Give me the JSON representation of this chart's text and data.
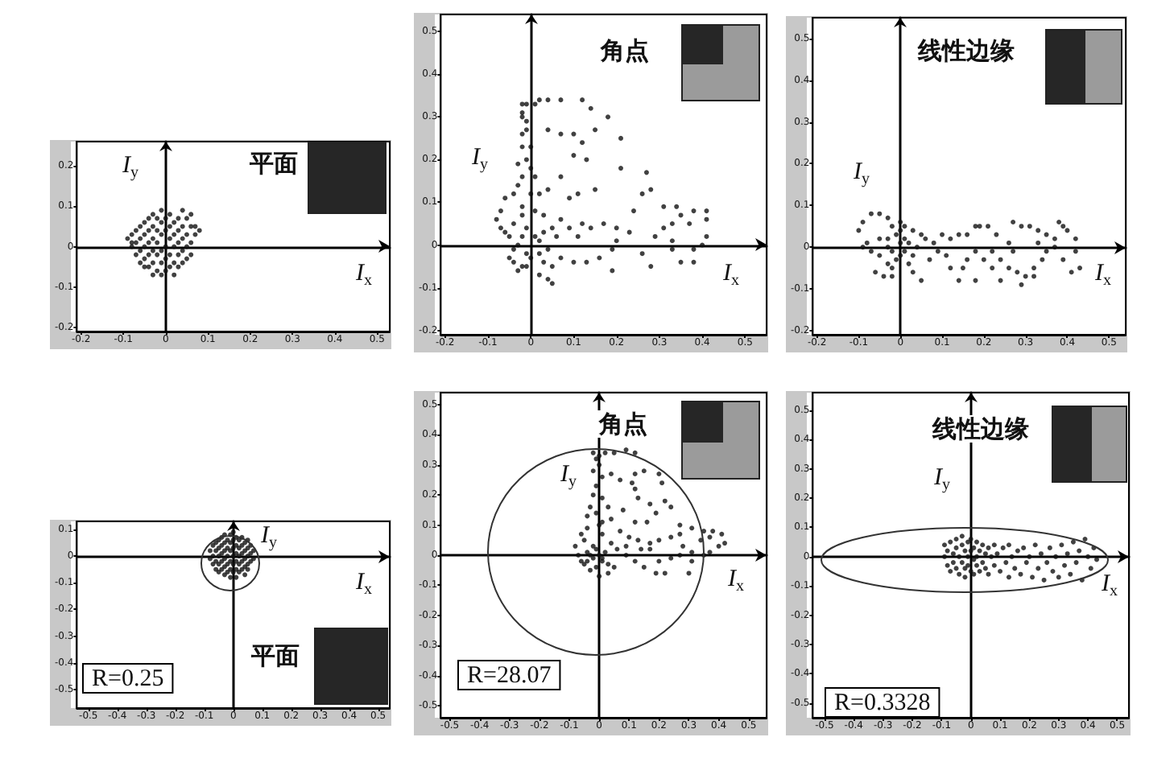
{
  "chart_data": [
    {
      "type": "scatter",
      "title": "平面",
      "xlabel": "I$_{x}$",
      "ylabel": "I$_{y}$",
      "xlim": [
        -0.21,
        0.53
      ],
      "ylim": [
        -0.21,
        0.26
      ],
      "xticks": [
        -0.2,
        -0.1,
        0,
        0.1,
        0.2,
        0.3,
        0.4,
        0.5
      ],
      "yticks": [
        -0.2,
        -0.1,
        0,
        0.1,
        0.2
      ],
      "marker": "circle",
      "color": "#111111",
      "x": [
        -0.09,
        -0.08,
        -0.08,
        -0.08,
        -0.07,
        -0.07,
        -0.07,
        -0.06,
        -0.06,
        -0.06,
        -0.06,
        -0.05,
        -0.05,
        -0.05,
        -0.05,
        -0.05,
        -0.04,
        -0.04,
        -0.04,
        -0.04,
        -0.04,
        -0.03,
        -0.03,
        -0.03,
        -0.03,
        -0.03,
        -0.03,
        -0.02,
        -0.02,
        -0.02,
        -0.02,
        -0.02,
        -0.01,
        -0.01,
        -0.01,
        -0.01,
        -0.01,
        -0.01,
        0,
        0,
        0,
        0,
        0,
        0.01,
        0.01,
        0.01,
        0.01,
        0.01,
        0.02,
        0.02,
        0.02,
        0.02,
        0.02,
        0.03,
        0.03,
        0.03,
        0.03,
        0.03,
        0.04,
        0.04,
        0.04,
        0.04,
        0.04,
        0.05,
        0.05,
        0.05,
        0.05,
        0.06,
        0.06,
        0.06,
        0.06,
        0.07,
        0.07,
        0.08
      ],
      "values": [
        0.02,
        0.01,
        0,
        0.03,
        -0.02,
        0.04,
        0.01,
        -0.04,
        0.05,
        0.02,
        -0.01,
        -0.05,
        0.06,
        0.03,
        0,
        -0.03,
        0.07,
        0.04,
        0.01,
        -0.02,
        -0.05,
        0.08,
        0.05,
        0.02,
        -0.01,
        -0.04,
        -0.07,
        0.07,
        0.04,
        0.01,
        -0.02,
        -0.06,
        0.09,
        0.06,
        0.03,
        -0.01,
        -0.04,
        -0.07,
        0.07,
        0.04,
        0,
        -0.03,
        -0.06,
        0.08,
        0.05,
        0.02,
        -0.02,
        -0.05,
        0.06,
        0.03,
        0,
        -0.04,
        -0.07,
        0.07,
        0.04,
        0.01,
        -0.02,
        -0.05,
        0.09,
        0.05,
        0.02,
        -0.01,
        -0.04,
        0.07,
        0.03,
        0,
        -0.03,
        0.08,
        0.05,
        0.01,
        -0.02,
        0.05,
        0.03,
        0.04
      ]
    },
    {
      "type": "scatter",
      "title": "角点",
      "xlabel": "I$_{x}$",
      "ylabel": "I$_{y}$",
      "xlim": [
        -0.21,
        0.55
      ],
      "ylim": [
        -0.21,
        0.54
      ],
      "xticks": [
        -0.2,
        -0.1,
        0,
        0.1,
        0.2,
        0.3,
        0.4,
        0.5
      ],
      "yticks": [
        -0.2,
        -0.1,
        0,
        0.1,
        0.2,
        0.3,
        0.4,
        0.5
      ],
      "marker": "circle",
      "color": "#111111",
      "x": [
        -0.02,
        -0.01,
        0.01,
        0.02,
        0.04,
        0.07,
        0.12,
        0.14,
        0.18,
        -0.02,
        -0.02,
        -0.01,
        0.04,
        0.07,
        0.1,
        0.15,
        0.21,
        0.12,
        -0.02,
        0,
        0.1,
        0.13,
        0.07,
        0.11,
        0.15,
        0.21,
        0.27,
        0.26,
        0.28,
        0.24,
        0.31,
        0.34,
        0.35,
        0.38,
        0.41,
        0.41,
        0.37,
        0.33,
        0.31,
        0.29,
        0.33,
        0.41,
        0.4,
        0.38,
        0.33,
        0.35,
        0.38,
        0.28,
        0.26,
        0.23,
        0.2,
        0.17,
        0.14,
        0.12,
        0.09,
        0.11,
        0.19,
        0.2,
        0.19,
        0.16,
        0.1,
        0.13,
        0.05,
        0.03,
        0.07,
        0.09,
        0.04,
        0.02,
        0.01,
        -0.02,
        -0.03,
        -0.04,
        -0.06,
        -0.07,
        -0.08,
        -0.07,
        -0.05,
        -0.04,
        -0.05,
        -0.04,
        -0.02,
        -0.01,
        0.02,
        0.04,
        0.05,
        0.05,
        0.07,
        0.04,
        0.01,
        -0.01,
        -0.02,
        -0.02,
        0,
        0.01,
        0.02,
        -0.01,
        -0.03,
        -0.06,
        -0.01,
        0,
        -0.03,
        -0.02,
        -0.01,
        -0.03,
        0.03,
        -0.02,
        0.02,
        0.03,
        -0.04,
        0,
        0.06
      ],
      "values": [
        0.33,
        0.33,
        0.33,
        0.34,
        0.34,
        0.34,
        0.34,
        0.32,
        0.3,
        0.31,
        0.3,
        0.29,
        0.27,
        0.26,
        0.26,
        0.27,
        0.25,
        0.24,
        0.23,
        0.23,
        0.21,
        0.2,
        0.16,
        0.12,
        0.13,
        0.18,
        0.17,
        0.12,
        0.13,
        0.08,
        0.09,
        0.09,
        0.07,
        0.08,
        0.08,
        0.06,
        0.05,
        0.05,
        0.04,
        0.02,
        0.01,
        0.02,
        0,
        -0.01,
        -0.01,
        -0.04,
        -0.04,
        -0.05,
        -0.02,
        0.03,
        0.04,
        0.05,
        0.04,
        0.05,
        0.04,
        0.02,
        -0.01,
        0.01,
        -0.06,
        -0.03,
        -0.04,
        -0.04,
        0.04,
        0.07,
        0.06,
        0.11,
        0.13,
        0.12,
        0.16,
        0.16,
        0.14,
        0.12,
        0.11,
        0.08,
        0.06,
        0.04,
        0.02,
        -0.01,
        -0.03,
        -0.04,
        -0.05,
        -0.05,
        -0.07,
        -0.08,
        -0.09,
        -0.05,
        -0.03,
        -0.01,
        0.02,
        0.04,
        0.07,
        0.09,
        0.12,
        0.08,
        -0.02,
        -0.02,
        0,
        0.03,
        0.2,
        0.18,
        0.19,
        0.26,
        0.27,
        -0.06,
        -0.04,
        0.02,
        0.01,
        0.03,
        0.05,
        -0.03,
        0.02
      ]
    },
    {
      "type": "scatter",
      "title": "线性边缘",
      "xlabel": "I$_{x}$",
      "ylabel": "I$_{y}$",
      "xlim": [
        -0.21,
        0.54
      ],
      "ylim": [
        -0.21,
        0.55
      ],
      "xticks": [
        -0.2,
        -0.1,
        0,
        0.1,
        0.2,
        0.3,
        0.4,
        0.5
      ],
      "yticks": [
        -0.2,
        -0.1,
        0,
        0.1,
        0.2,
        0.3,
        0.4,
        0.5
      ],
      "marker": "circle",
      "color": "#111111",
      "x": [
        -0.1,
        -0.09,
        -0.07,
        -0.05,
        -0.03,
        -0.02,
        0,
        0.01,
        0.03,
        0.05,
        0.06,
        0.08,
        0.1,
        0.12,
        0.14,
        0.16,
        0.18,
        0.19,
        0.21,
        0.23,
        0.26,
        0.27,
        0.29,
        0.31,
        0.33,
        0.35,
        0.37,
        0.38,
        0.39,
        0.4,
        0.42,
        0.42,
        0.43,
        0.41,
        0.39,
        0.37,
        0.35,
        0.34,
        0.32,
        0.3,
        0.28,
        0.26,
        0.24,
        0.22,
        0.2,
        0.18,
        0.16,
        0.15,
        0.14,
        0.12,
        0.11,
        0.09,
        0.07,
        0.05,
        0.03,
        0.01,
        0,
        -0.02,
        -0.03,
        -0.05,
        -0.07,
        -0.08,
        -0.09,
        -0.06,
        -0.04,
        -0.02,
        -0.01,
        0,
        0.02,
        -0.03,
        -0.05,
        0.18,
        0.29,
        0.32,
        0.24,
        0.33,
        0.22,
        0.27,
        -0.01,
        0.02,
        -0.03,
        0.04,
        0.01,
        -0.02,
        0.03,
        0
      ],
      "values": [
        0.04,
        0.06,
        0.08,
        0.08,
        0.07,
        0.05,
        0.06,
        0.05,
        0.04,
        0.03,
        0.02,
        0.01,
        0.03,
        0.02,
        0.03,
        0.03,
        0.05,
        0.05,
        0.05,
        0.03,
        0.01,
        0.06,
        0.05,
        0.05,
        0.04,
        0.03,
        0.02,
        0.06,
        0.05,
        0.04,
        0.02,
        -0.01,
        -0.05,
        -0.06,
        -0.03,
        0,
        -0.01,
        -0.03,
        -0.05,
        -0.07,
        -0.06,
        -0.05,
        -0.03,
        -0.05,
        -0.03,
        -0.01,
        -0.03,
        -0.05,
        -0.08,
        -0.05,
        -0.02,
        -0.01,
        -0.03,
        -0.08,
        -0.02,
        -0.01,
        -0.02,
        -0.05,
        -0.04,
        -0.02,
        -0.01,
        0.01,
        0,
        -0.06,
        -0.07,
        -0.07,
        0.03,
        0.01,
        0.01,
        0.02,
        0.02,
        -0.08,
        -0.09,
        -0.07,
        -0.08,
        0.01,
        -0.01,
        -0.01,
        -0.03,
        -0.04,
        0,
        0,
        0.02,
        -0.01,
        -0.06,
        0.04
      ]
    },
    {
      "type": "scatter",
      "title": "平面",
      "xlabel": "I$_{x}$",
      "ylabel": "I$_{y}$",
      "xlim": [
        -0.54,
        0.54
      ],
      "ylim": [
        -0.57,
        0.13
      ],
      "xticks": [
        -0.5,
        -0.4,
        -0.3,
        -0.2,
        -0.1,
        0,
        0.1,
        0.2,
        0.3,
        0.4,
        0.5
      ],
      "yticks": [
        -0.5,
        -0.4,
        -0.3,
        -0.2,
        -0.1,
        0,
        0.1
      ],
      "marker": "circle",
      "color": "#111111",
      "annotations": [
        "R=0.25"
      ],
      "x": [
        -0.08,
        -0.08,
        -0.07,
        -0.07,
        -0.07,
        -0.06,
        -0.06,
        -0.06,
        -0.06,
        -0.05,
        -0.05,
        -0.05,
        -0.05,
        -0.05,
        -0.04,
        -0.04,
        -0.04,
        -0.04,
        -0.04,
        -0.03,
        -0.03,
        -0.03,
        -0.03,
        -0.03,
        -0.03,
        -0.02,
        -0.02,
        -0.02,
        -0.02,
        -0.02,
        -0.01,
        -0.01,
        -0.01,
        -0.01,
        -0.01,
        -0.01,
        0,
        0,
        0,
        0,
        0,
        0,
        0.01,
        0.01,
        0.01,
        0.01,
        0.01,
        0.01,
        0.02,
        0.02,
        0.02,
        0.02,
        0.02,
        0.03,
        0.03,
        0.03,
        0.03,
        0.03,
        0.04,
        0.04,
        0.04,
        0.04,
        0.04,
        0.05,
        0.05,
        0.05,
        0.05,
        0.05,
        0.06,
        0.06,
        0.06,
        0.07,
        0.07
      ],
      "values": [
        0.02,
        -0.01,
        0.04,
        0,
        -0.03,
        0.05,
        0.02,
        -0.02,
        -0.05,
        0.06,
        0.03,
        0,
        -0.03,
        -0.06,
        0.07,
        0.04,
        0.01,
        -0.02,
        -0.05,
        0.08,
        0.05,
        0.02,
        -0.01,
        -0.04,
        -0.07,
        0.06,
        0.03,
        0,
        -0.03,
        -0.06,
        0.08,
        0.05,
        0.02,
        -0.02,
        -0.05,
        -0.08,
        0.09,
        0.06,
        0.03,
        0,
        -0.03,
        -0.06,
        0.07,
        0.04,
        0.01,
        -0.02,
        -0.05,
        -0.08,
        0.06,
        0.03,
        0,
        -0.03,
        -0.06,
        0.07,
        0.04,
        0.01,
        -0.02,
        -0.05,
        0.05,
        0.02,
        -0.01,
        -0.04,
        -0.07,
        0.06,
        0.03,
        0,
        -0.03,
        -0.05,
        0.04,
        0.01,
        -0.02,
        0.02,
        -0.01
      ]
    },
    {
      "type": "scatter",
      "title": "角点",
      "xlabel": "I$_{x}$",
      "ylabel": "I$_{y}$",
      "xlim": [
        -0.53,
        0.56
      ],
      "ylim": [
        -0.54,
        0.54
      ],
      "xticks": [
        -0.5,
        -0.4,
        -0.3,
        -0.2,
        -0.1,
        0,
        0.1,
        0.2,
        0.3,
        0.4,
        0.5
      ],
      "yticks": [
        -0.5,
        -0.4,
        -0.3,
        -0.2,
        -0.1,
        0,
        0.1,
        0.2,
        0.3,
        0.4,
        0.5
      ],
      "marker": "circle",
      "color": "#111111",
      "annotations": [
        "R=28.07"
      ],
      "x": [
        -0.02,
        -0.01,
        0,
        0.02,
        0.05,
        0.09,
        0.12,
        0,
        -0.02,
        0.01,
        0.04,
        0.07,
        0.11,
        0.12,
        0.15,
        0.2,
        0.21,
        0.12,
        0.13,
        0.17,
        0.22,
        0.24,
        0.27,
        0.31,
        0.35,
        0.38,
        0.41,
        0.42,
        0.4,
        0.37,
        0.35,
        0.31,
        0.27,
        0.24,
        0.2,
        0.19,
        0.15,
        0.12,
        0.09,
        0.05,
        0.03,
        0,
        -0.03,
        -0.05,
        -0.07,
        -0.08,
        -0.06,
        -0.04,
        -0.04,
        -0.03,
        -0.02,
        -0.01,
        0.01,
        0.03,
        0.04,
        0.07,
        0.1,
        0.13,
        0.17,
        0.2,
        0.24,
        0.28,
        0.31,
        0.3,
        0.22,
        0.17,
        0.14,
        0.09,
        0.06,
        0.04,
        0.01,
        -0.02,
        -0.04,
        -0.05,
        -0.03,
        0.01,
        0.03,
        -0.01,
        -0.04,
        -0.06,
        0.27,
        0.34,
        0.37,
        0.19,
        0.16,
        0.12,
        0.08,
        0,
        0.02,
        -0.01,
        0.01,
        -0.02,
        0,
        -0.01,
        0.01
      ],
      "values": [
        0.34,
        0.32,
        0.33,
        0.34,
        0.34,
        0.35,
        0.34,
        0.3,
        0.28,
        0.26,
        0.27,
        0.25,
        0.24,
        0.27,
        0.28,
        0.27,
        0.24,
        0.22,
        0.19,
        0.17,
        0.18,
        0.16,
        0.1,
        0.09,
        0.08,
        0.08,
        0.07,
        0.04,
        0.03,
        0.01,
        0,
        0.01,
        0,
        -0.01,
        -0.02,
        -0.06,
        -0.04,
        -0.02,
        0,
        -0.04,
        -0.06,
        -0.07,
        -0.05,
        -0.03,
        0,
        0.03,
        0.07,
        0.09,
        0.13,
        0.16,
        0.2,
        0.23,
        0.19,
        0.16,
        0.12,
        0.08,
        0.06,
        0.05,
        0.04,
        0.05,
        0.06,
        0.03,
        -0.02,
        -0.06,
        -0.06,
        0.02,
        0.02,
        0.03,
        0.02,
        0.04,
        0.07,
        0.03,
        0.01,
        0.05,
        0,
        -0.01,
        -0.03,
        -0.04,
        -0.02,
        -0.02,
        0.07,
        0.05,
        0.06,
        0.14,
        0.11,
        0.11,
        0.15,
        0,
        0.01,
        0.02,
        -0.02,
        -0.01,
        0.1,
        0.14,
        0.11
      ]
    },
    {
      "type": "scatter",
      "title": "线性边缘",
      "xlabel": "I$_{x}$",
      "ylabel": "I$_{y}$",
      "xlim": [
        -0.54,
        0.54
      ],
      "ylim": [
        -0.55,
        0.56
      ],
      "xticks": [
        -0.5,
        -0.4,
        -0.3,
        -0.2,
        -0.1,
        0,
        0.1,
        0.2,
        0.3,
        0.4,
        0.5
      ],
      "yticks": [
        -0.5,
        -0.4,
        -0.3,
        -0.2,
        -0.1,
        0,
        0.1,
        0.2,
        0.3,
        0.4,
        0.5
      ],
      "marker": "circle",
      "color": "#111111",
      "annotations": [
        "R=0.3328"
      ],
      "x": [
        -0.09,
        -0.09,
        -0.08,
        -0.08,
        -0.07,
        -0.07,
        -0.06,
        -0.06,
        -0.05,
        -0.05,
        -0.05,
        -0.04,
        -0.04,
        -0.03,
        -0.03,
        -0.03,
        -0.02,
        -0.02,
        -0.02,
        -0.01,
        -0.01,
        -0.01,
        0,
        0,
        0,
        0.01,
        0.01,
        0.01,
        0.02,
        0.02,
        0.02,
        0.03,
        0.03,
        0.04,
        0.04,
        0.05,
        0.05,
        0.06,
        0.06,
        0.07,
        0.08,
        0.08,
        0.09,
        0.1,
        0.11,
        0.12,
        0.13,
        0.13,
        0.14,
        0.15,
        0.16,
        0.17,
        0.18,
        0.19,
        0.2,
        0.21,
        0.22,
        0.23,
        0.24,
        0.25,
        0.26,
        0.27,
        0.28,
        0.29,
        0.3,
        0.31,
        0.32,
        0.33,
        0.34,
        0.35,
        0.36,
        0.37,
        0.38,
        0.39,
        0.4,
        0.41,
        0.42,
        0.43
      ],
      "values": [
        0.04,
        0,
        -0.03,
        0.02,
        0.05,
        -0.05,
        0.01,
        -0.02,
        0.06,
        0.03,
        -0.04,
        0,
        -0.06,
        0.04,
        -0.02,
        0.07,
        0.02,
        -0.04,
        -0.07,
        0.05,
        0,
        -0.03,
        0.06,
        0.02,
        -0.05,
        0.03,
        -0.01,
        -0.06,
        0.05,
        0,
        -0.03,
        0.02,
        -0.05,
        0.04,
        -0.02,
        0.01,
        -0.04,
        0.03,
        -0.06,
        0,
        0.04,
        -0.03,
        0.01,
        -0.05,
        0.03,
        -0.02,
        0.04,
        -0.07,
        0,
        -0.04,
        0.02,
        -0.06,
        0.03,
        -0.02,
        0,
        -0.07,
        0.04,
        -0.04,
        0.01,
        -0.08,
        -0.02,
        0.03,
        -0.05,
        0,
        -0.07,
        0.04,
        -0.03,
        0.01,
        -0.06,
        0.05,
        -0.02,
        0.02,
        -0.08,
        0.06,
        0,
        -0.04,
        0.03,
        -0.01
      ]
    }
  ]
}
